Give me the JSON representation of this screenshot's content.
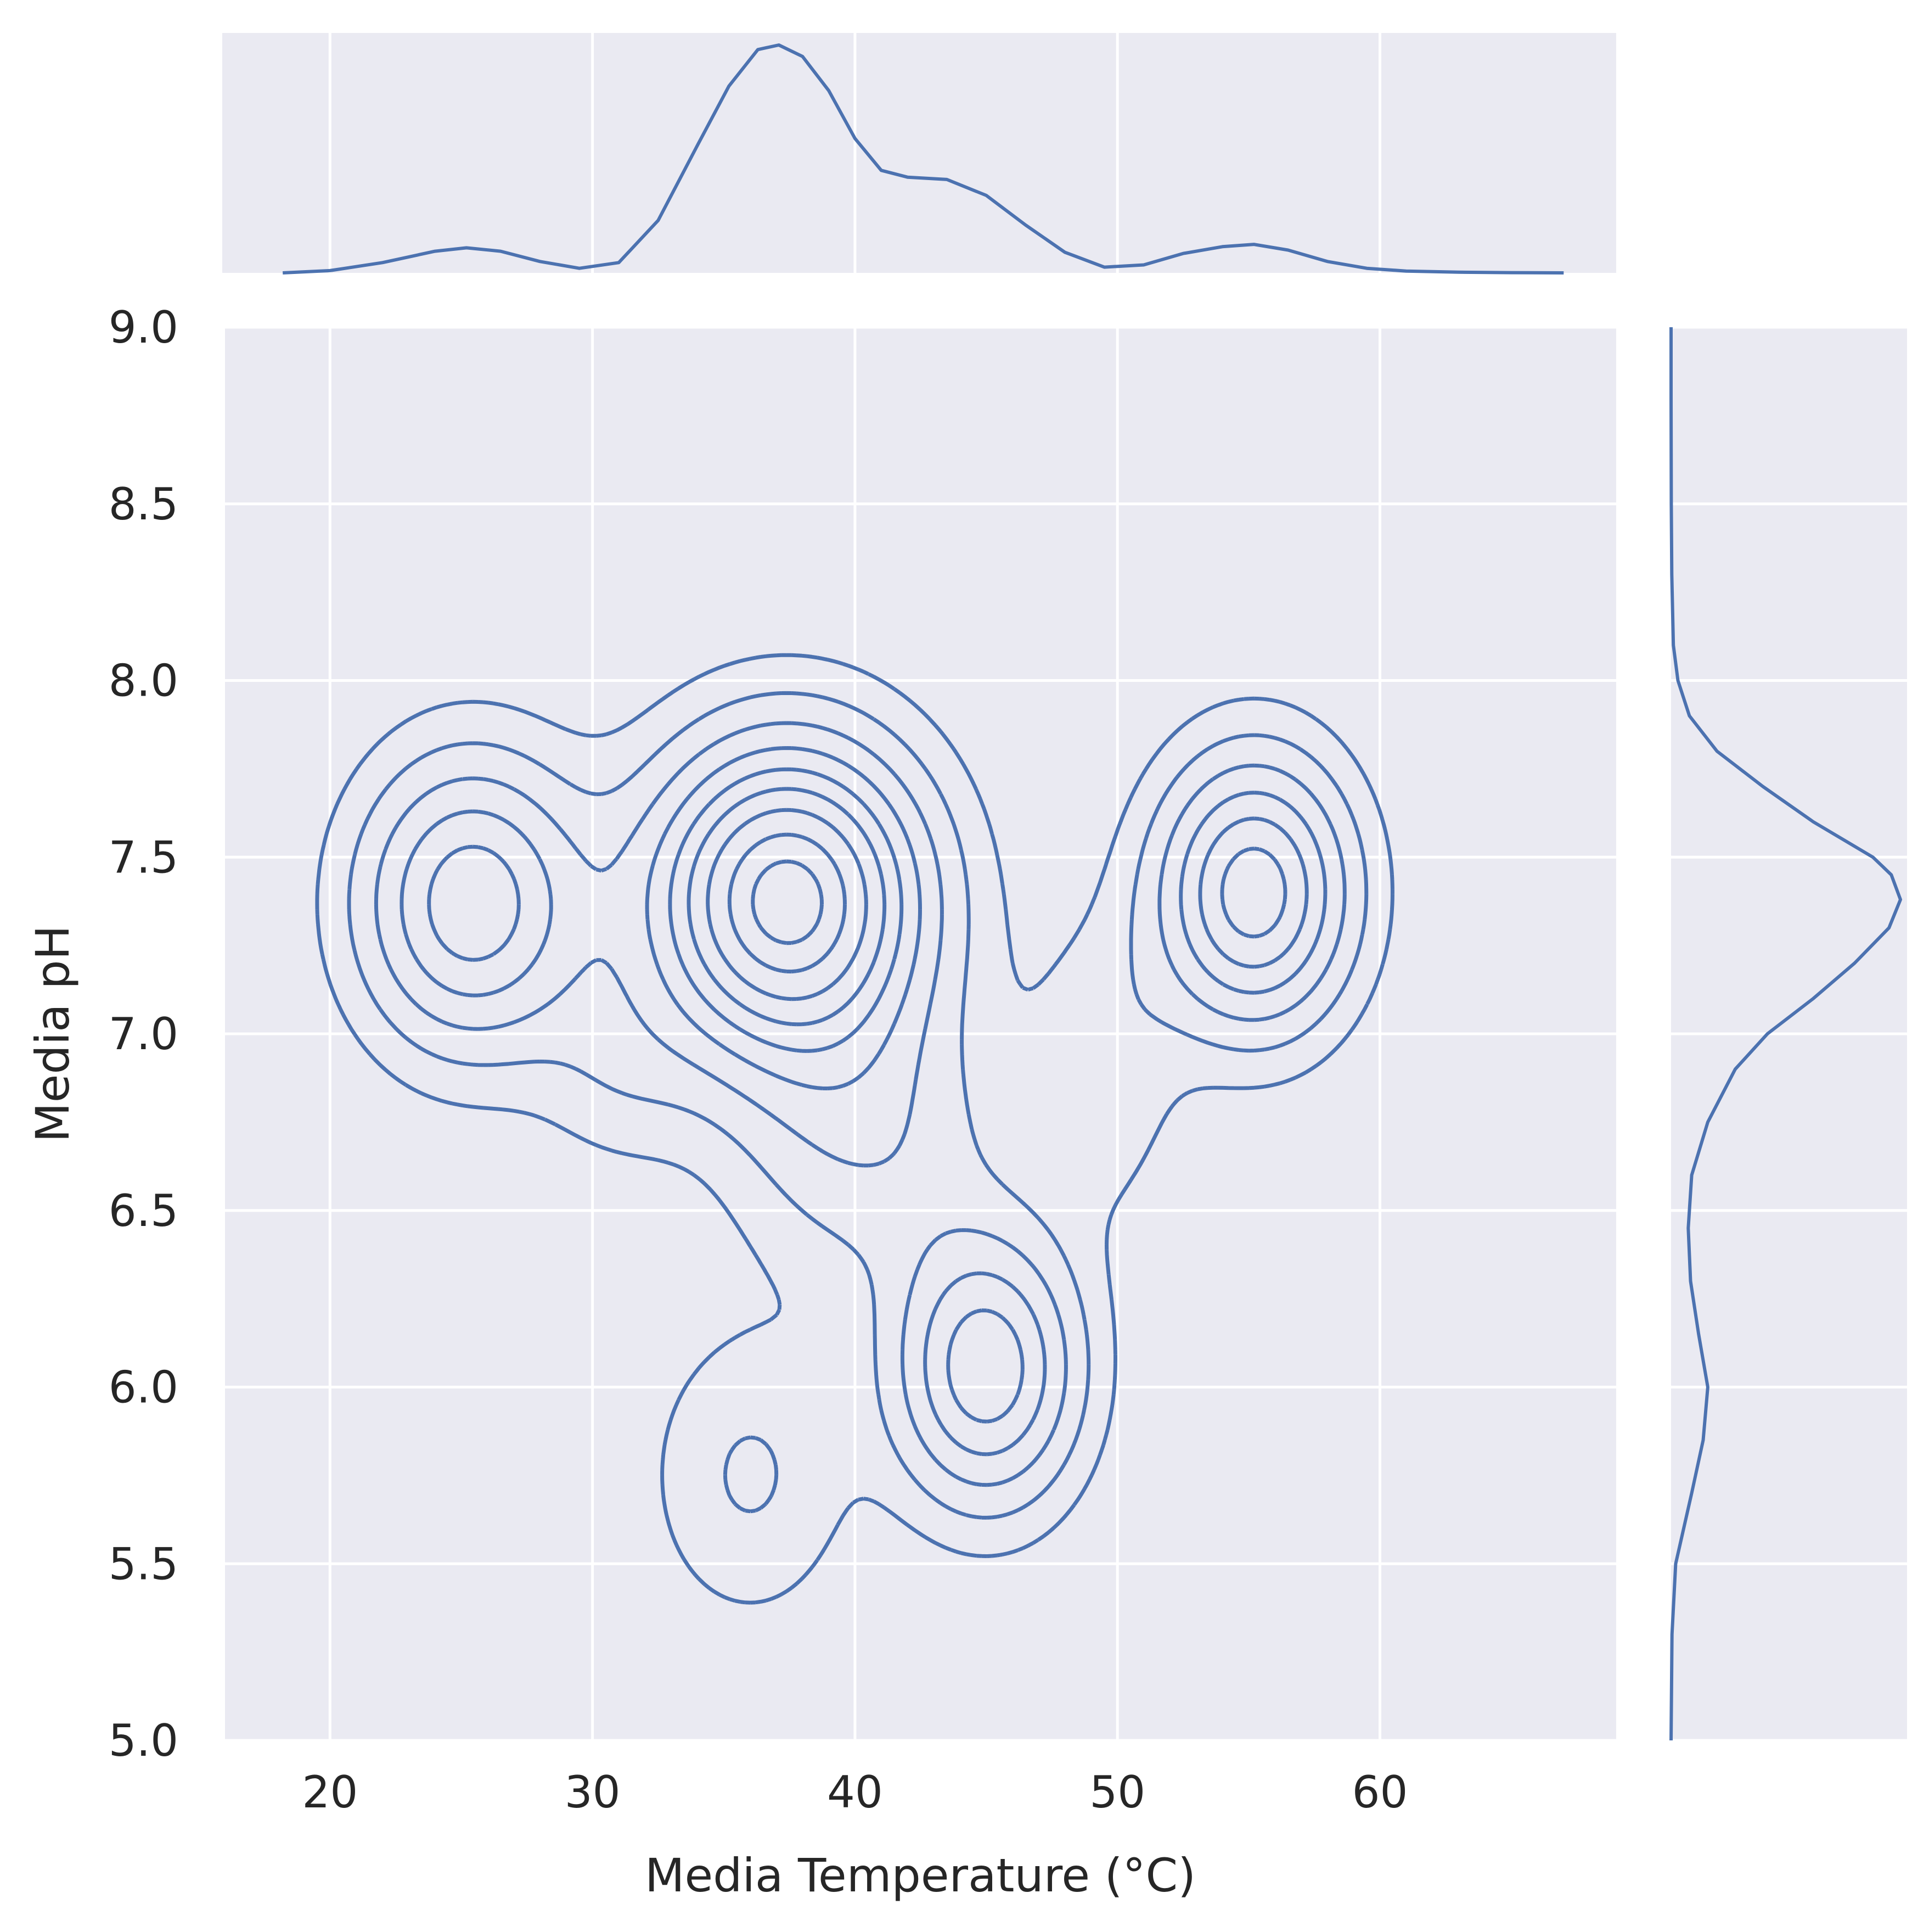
{
  "chart_data": {
    "type": "kde-jointplot",
    "xlabel": "Media Temperature (°C)",
    "ylabel": "Media pH",
    "xlim": [
      16,
      69
    ],
    "ylim": [
      5.0,
      9.0
    ],
    "x_ticks": [
      "20",
      "30",
      "40",
      "50",
      "60"
    ],
    "y_ticks": [
      "5.0",
      "5.5",
      "6.0",
      "6.5",
      "7.0",
      "7.5",
      "8.0",
      "8.5",
      "9.0"
    ],
    "x_tick_values": [
      20,
      30,
      40,
      50,
      60
    ],
    "y_tick_values": [
      5.0,
      5.5,
      6.0,
      6.5,
      7.0,
      7.5,
      8.0,
      8.5,
      9.0
    ],
    "grid": true,
    "line_color": "#4c72b0",
    "background_color": "#eaeaf2",
    "density_peaks": [
      {
        "x": 25.4,
        "y": 7.37
      },
      {
        "x": 37.4,
        "y": 7.38
      },
      {
        "x": 45.0,
        "y": 6.05
      },
      {
        "x": 55.2,
        "y": 7.4
      }
    ],
    "marginal_x": {
      "x": [
        18.2,
        20,
        22,
        24,
        25.2,
        26.5,
        28,
        29.5,
        31,
        32.5,
        34,
        35.2,
        36.3,
        37.1,
        38,
        39,
        40,
        41,
        42,
        43.5,
        45,
        46.5,
        48,
        49.5,
        51,
        52.5,
        54,
        55.2,
        56.5,
        58,
        59.5,
        61,
        63,
        65,
        67
      ],
      "density": [
        0.0,
        0.01,
        0.045,
        0.095,
        0.11,
        0.095,
        0.05,
        0.02,
        0.045,
        0.23,
        0.56,
        0.82,
        0.98,
        1.0,
        0.95,
        0.8,
        0.59,
        0.45,
        0.42,
        0.41,
        0.34,
        0.21,
        0.09,
        0.025,
        0.035,
        0.085,
        0.115,
        0.125,
        0.1,
        0.05,
        0.02,
        0.008,
        0.003,
        0.001,
        0.0
      ]
    },
    "marginal_y": {
      "y": [
        5.0,
        5.3,
        5.5,
        5.7,
        5.85,
        6.0,
        6.15,
        6.3,
        6.45,
        6.6,
        6.75,
        6.9,
        7.0,
        7.1,
        7.2,
        7.3,
        7.38,
        7.45,
        7.5,
        7.6,
        7.7,
        7.8,
        7.9,
        8.0,
        8.1,
        8.3,
        8.5,
        8.8,
        9.0
      ],
      "density": [
        0.0,
        0.004,
        0.02,
        0.09,
        0.14,
        0.16,
        0.12,
        0.085,
        0.075,
        0.09,
        0.16,
        0.28,
        0.42,
        0.62,
        0.8,
        0.95,
        1.0,
        0.96,
        0.88,
        0.62,
        0.4,
        0.2,
        0.08,
        0.03,
        0.01,
        0.003,
        0.001,
        0.0,
        0.0
      ]
    }
  }
}
